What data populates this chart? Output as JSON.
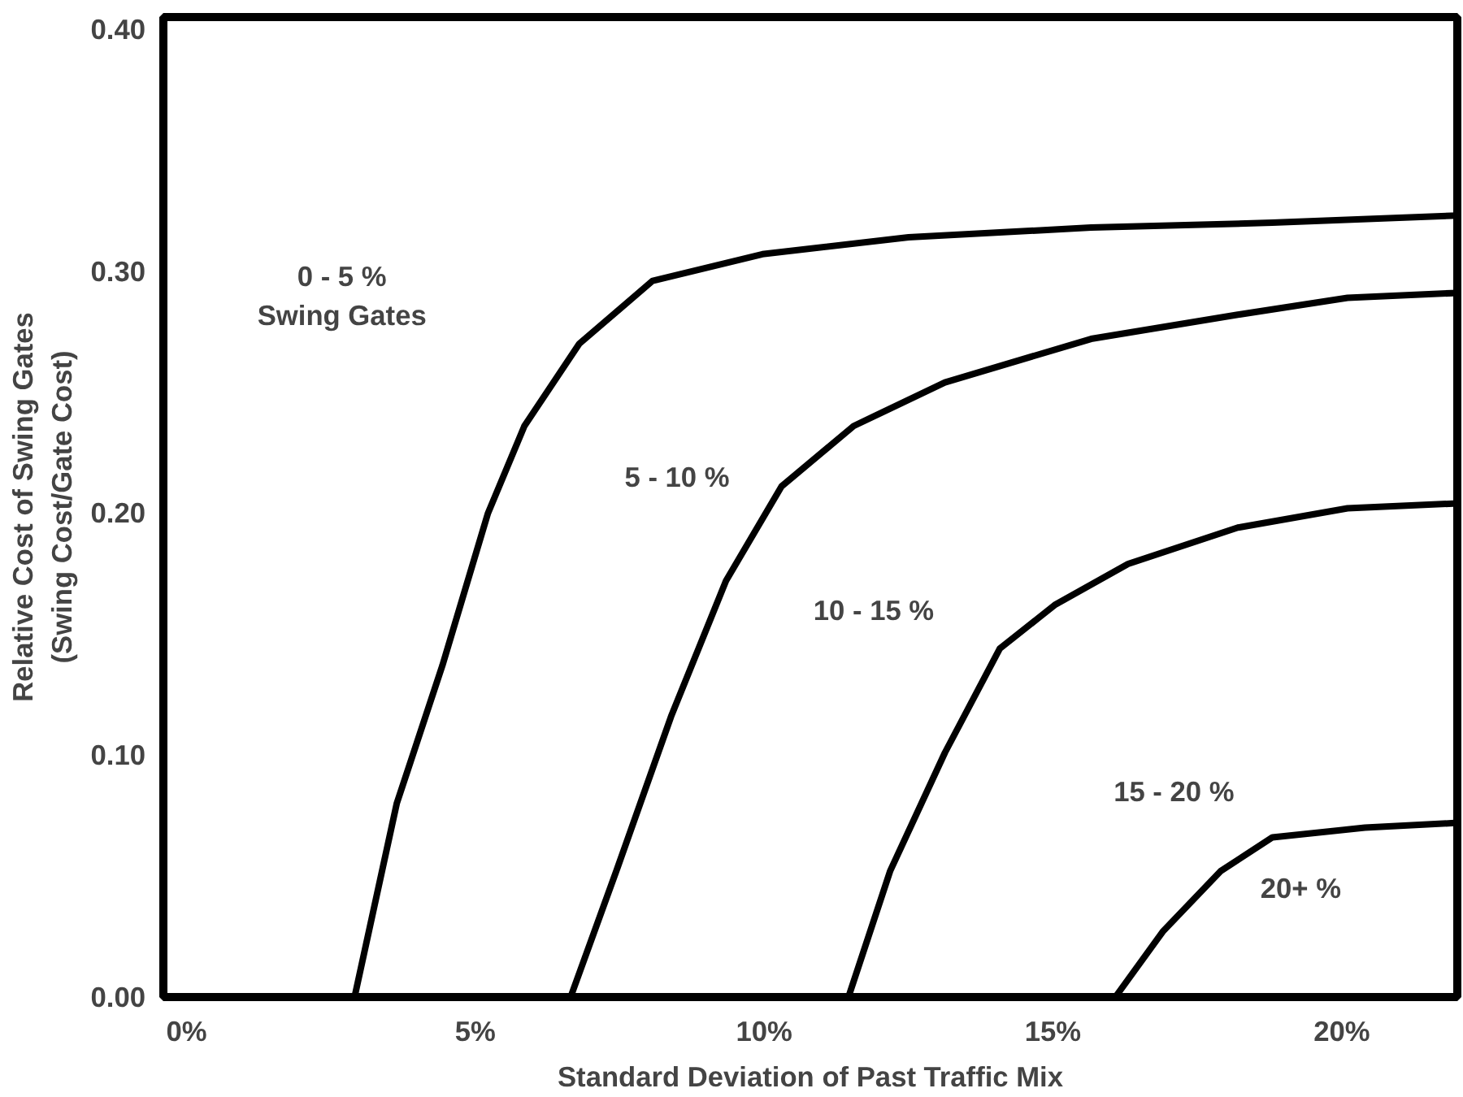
{
  "chart_data": {
    "type": "line",
    "xlabel": "Standard Deviation of Past Traffic Mix",
    "ylabel": "Relative Cost of Swing Gates\n(Swing Cost/Gate Cost)",
    "xlim": [
      -0.4,
      22
    ],
    "ylim": [
      0,
      0.405
    ],
    "xticks": [
      {
        "value": 0,
        "label": "0%"
      },
      {
        "value": 5,
        "label": "5%"
      },
      {
        "value": 10,
        "label": "10%"
      },
      {
        "value": 15,
        "label": "15%"
      },
      {
        "value": 20,
        "label": "20%"
      }
    ],
    "yticks": [
      {
        "value": 0,
        "label": "0.00"
      },
      {
        "value": 0.1,
        "label": "0.10"
      },
      {
        "value": 0.2,
        "label": "0.20"
      },
      {
        "value": 0.3,
        "label": "0.30"
      },
      {
        "value": 0.4,
        "label": "0.40"
      }
    ],
    "grid": false,
    "marker": "none",
    "line_style": "solid",
    "series": [
      {
        "color": "#000000",
        "x": [
          2.91,
          3.64,
          4.43,
          5.22,
          5.85,
          6.8,
          8.07,
          9.97,
          12.5,
          15.66,
          18.8,
          22
        ],
        "values": [
          0,
          0.08,
          0.137,
          0.2,
          0.236,
          0.27,
          0.296,
          0.307,
          0.314,
          0.318,
          0.32,
          0.323
        ]
      },
      {
        "color": "#000000",
        "x": [
          6.65,
          7.44,
          8.39,
          9.34,
          10.3,
          11.55,
          13.13,
          15.66,
          18.2,
          20.1,
          22
        ],
        "values": [
          0,
          0.052,
          0.116,
          0.172,
          0.211,
          0.236,
          0.254,
          0.272,
          0.282,
          0.289,
          0.291
        ]
      },
      {
        "color": "#000000",
        "x": [
          11.46,
          12.18,
          13.13,
          14.08,
          15.03,
          16.3,
          18.2,
          20.1,
          22
        ],
        "values": [
          0,
          0.052,
          0.101,
          0.144,
          0.162,
          0.179,
          0.194,
          0.202,
          0.204
        ]
      },
      {
        "color": "#000000",
        "x": [
          16.08,
          16.9,
          17.9,
          18.8,
          20.4,
          22
        ],
        "values": [
          0,
          0.027,
          0.052,
          0.066,
          0.07,
          0.072
        ]
      }
    ],
    "annotations": [
      "0 - 5 %\nSwing Gates",
      "5 - 10 %",
      "10 - 15 %",
      "15 - 20 %",
      "20+ %"
    ]
  }
}
